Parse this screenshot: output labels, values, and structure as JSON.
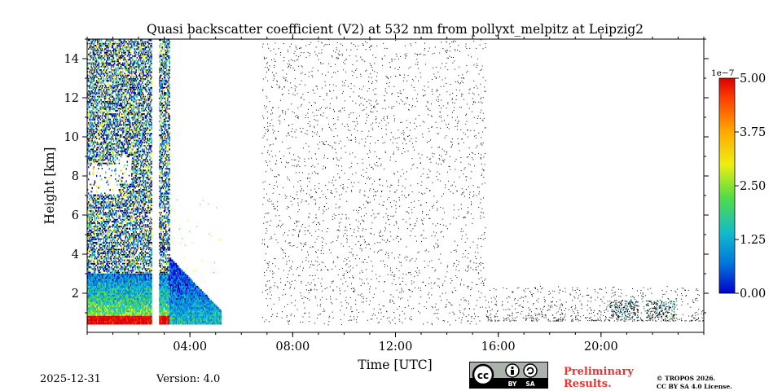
{
  "chart_data": {
    "type": "heatmap",
    "title": "Quasi backscatter coefficient (V2) at 532 nm from pollyxt_melpitz at Leipzig2",
    "xlabel": "Time [UTC]",
    "ylabel": "Height [km]",
    "xlim": [
      0,
      24
    ],
    "ylim": [
      0,
      15
    ],
    "x_ticks": [
      {
        "value": 4,
        "label": "04:00"
      },
      {
        "value": 8,
        "label": "08:00"
      },
      {
        "value": 12,
        "label": "12:00"
      },
      {
        "value": 16,
        "label": "16:00"
      },
      {
        "value": 20,
        "label": "20:00"
      }
    ],
    "y_ticks": [
      {
        "value": 2,
        "label": "2"
      },
      {
        "value": 4,
        "label": "4"
      },
      {
        "value": 6,
        "label": "6"
      },
      {
        "value": 8,
        "label": "8"
      },
      {
        "value": 10,
        "label": "10"
      },
      {
        "value": 12,
        "label": "12"
      },
      {
        "value": 14,
        "label": "14"
      }
    ],
    "colorbar": {
      "exponent_label": "1e−7",
      "vmin": 0.0,
      "vmax": 5.0,
      "ticks": [
        {
          "value": 0.0,
          "label": "0.00"
        },
        {
          "value": 1.25,
          "label": "1.25"
        },
        {
          "value": 2.5,
          "label": "2.50"
        },
        {
          "value": 3.75,
          "label": "3.75"
        },
        {
          "value": 5.0,
          "label": "5.00"
        }
      ],
      "colormap": [
        "#0000cc",
        "#0077dd",
        "#11bbcc",
        "#55dd44",
        "#eeee11",
        "#ffaa00",
        "#ff4400",
        "#dd0000"
      ]
    },
    "features": {
      "dense_signal_time": [
        0.0,
        3.2
      ],
      "dense_signal_top_km": 15,
      "gap_times": [
        [
          2.5,
          2.8
        ]
      ],
      "aerosol_layer_time": [
        0.0,
        5.2
      ],
      "aerosol_layer_top_km": 3.0,
      "cloud_patches": [
        {
          "time": [
            0.0,
            1.2
          ],
          "height": [
            7.0,
            8.5
          ]
        },
        {
          "time": [
            1.1,
            1.7
          ],
          "height": [
            7.6,
            9.0
          ]
        }
      ],
      "sparse_noise_time": [
        6.8,
        15.5
      ],
      "sparse_noise_top_km": 15,
      "boundary_layer_blobs": [
        {
          "time": 20.9,
          "height": 1.2
        },
        {
          "time": 22.3,
          "height": 1.2
        }
      ]
    }
  },
  "footer": {
    "date": "2025-12-31",
    "version": "Version: 4.0",
    "cc_labels": {
      "cc": "cc",
      "by": "BY",
      "sa": "SA"
    },
    "preliminary_line1": "Preliminary",
    "preliminary_line2": "Results.",
    "copyright_line1": "© TROPOS 2026.",
    "copyright_line2": "CC BY SA 4.0 License."
  }
}
